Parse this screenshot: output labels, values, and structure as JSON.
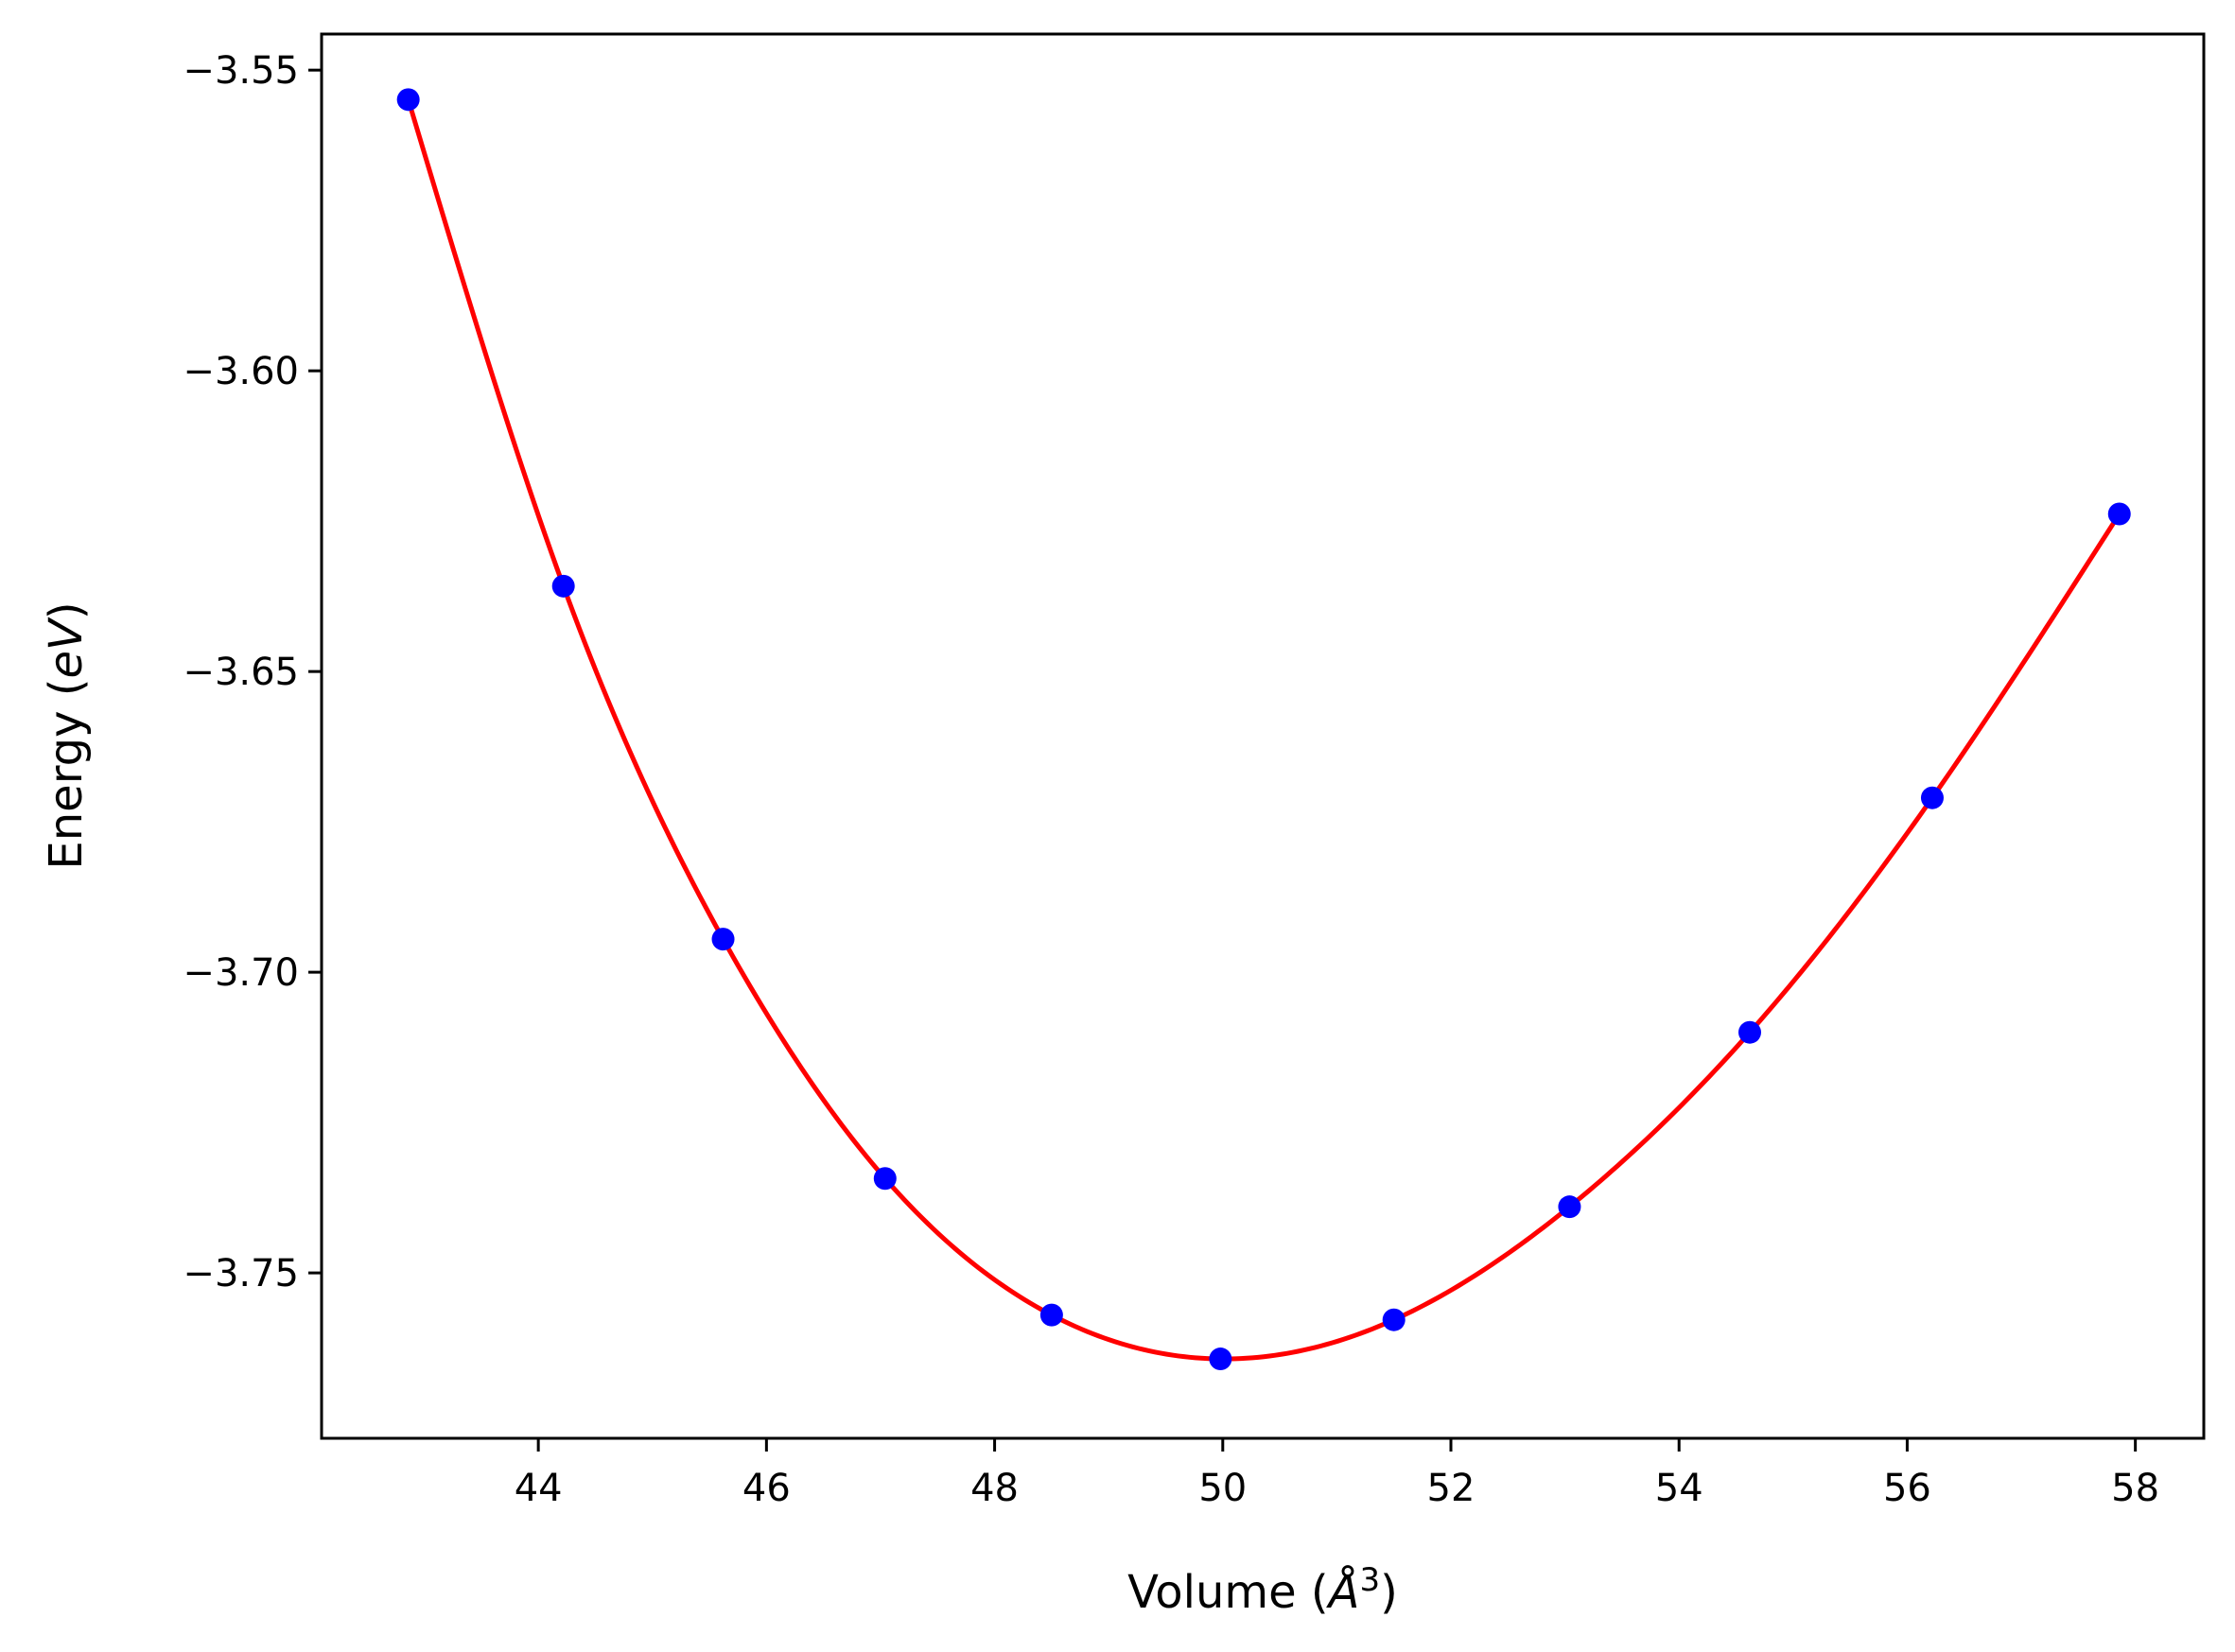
{
  "chart_data": {
    "type": "line",
    "xlabel": {
      "text": "Volume (",
      "italic": "Å",
      "sup": "3",
      "end": ")"
    },
    "ylabel": {
      "text": "Energy (",
      "italic": "eV",
      "end": ")"
    },
    "xlim": [
      42.1,
      58.6
    ],
    "ylim": [
      -3.7775,
      -3.544
    ],
    "xticks": [
      {
        "value": 44,
        "label": "44"
      },
      {
        "value": 46,
        "label": "46"
      },
      {
        "value": 48,
        "label": "48"
      },
      {
        "value": 50,
        "label": "50"
      },
      {
        "value": 52,
        "label": "52"
      },
      {
        "value": 54,
        "label": "54"
      },
      {
        "value": 56,
        "label": "56"
      },
      {
        "value": 58,
        "label": "58"
      }
    ],
    "yticks": [
      {
        "value": -3.55,
        "label": "−3.55"
      },
      {
        "value": -3.6,
        "label": "−3.60"
      },
      {
        "value": -3.65,
        "label": "−3.65"
      },
      {
        "value": -3.7,
        "label": "−3.70"
      },
      {
        "value": -3.75,
        "label": "−3.75"
      }
    ],
    "series": [
      {
        "kind": "scatter",
        "color": "#0000ff",
        "x": [
          42.86,
          44.22,
          45.62,
          47.04,
          48.5,
          49.98,
          51.5,
          53.04,
          54.62,
          56.22,
          57.86
        ],
        "y": [
          -3.5549,
          -3.6358,
          -3.6945,
          -3.7343,
          -3.757,
          -3.7643,
          -3.7578,
          -3.739,
          -3.71,
          -3.671,
          -3.6238
        ]
      },
      {
        "kind": "fit",
        "color": "#ff0000",
        "x": [
          42.86,
          57.86
        ],
        "y": [
          -3.5549,
          -3.6238
        ]
      }
    ]
  }
}
